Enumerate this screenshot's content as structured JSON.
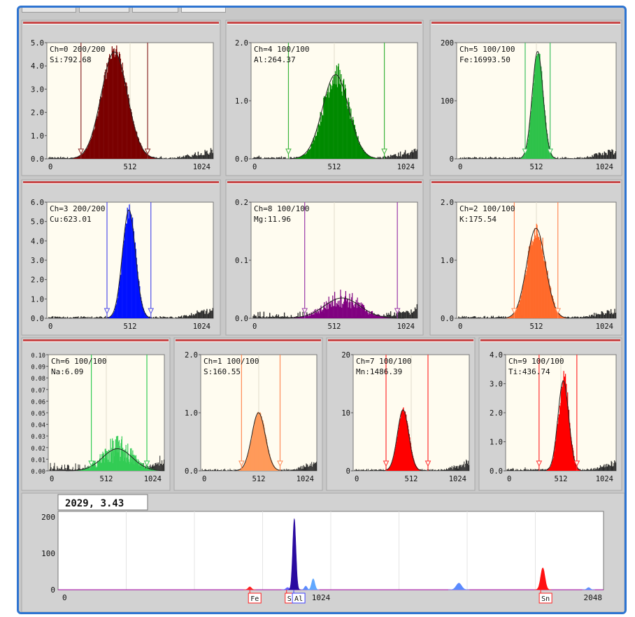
{
  "readout": "2029,  3.43",
  "chart_data": [
    {
      "type": "area",
      "channel": "Ch=0",
      "counts": "200/200",
      "element_label": "Si:792.68",
      "xlim": [
        0,
        1024
      ],
      "ylim": [
        0,
        5.0
      ],
      "x_ticks": [
        "0",
        "512",
        "1024"
      ],
      "y_ticks": [
        "0.0",
        "1.0",
        "2.0",
        "3.0",
        "4.0",
        "5.0"
      ],
      "peak_center": 415,
      "peak_height": 4.6,
      "peak_sigma": 80,
      "roi": [
        210,
        620
      ],
      "fill": "#7a0000",
      "line": "#8b2a2a",
      "noise": 0.1
    },
    {
      "type": "area",
      "channel": "Ch=4",
      "counts": "100/100",
      "element_label": "Al:264.37",
      "xlim": [
        0,
        1024
      ],
      "ylim": [
        0,
        2.0
      ],
      "x_ticks": [
        "0",
        "512",
        "1024"
      ],
      "y_ticks": [
        "0.0",
        "1.0",
        "2.0"
      ],
      "peak_center": 520,
      "peak_height": 1.45,
      "peak_sigma": 80,
      "roi": [
        230,
        820
      ],
      "fill": "#008a00",
      "line": "#3cb43c",
      "noise": 0.2
    },
    {
      "type": "area",
      "channel": "Ch=5",
      "counts": "100/100",
      "element_label": "Fe:16993.50",
      "xlim": [
        0,
        1024
      ],
      "ylim": [
        0,
        200
      ],
      "x_ticks": [
        "0",
        "512",
        "1024"
      ],
      "y_ticks": [
        "0",
        "100",
        "200"
      ],
      "peak_center": 520,
      "peak_height": 185,
      "peak_sigma": 35,
      "roi": [
        440,
        600
      ],
      "fill": "#2ec24a",
      "line": "#40c060",
      "noise": 0.05
    },
    {
      "type": "area",
      "channel": "Ch=3",
      "counts": "200/200",
      "element_label": "Cu:623.01",
      "xlim": [
        0,
        1024
      ],
      "ylim": [
        0,
        6.0
      ],
      "x_ticks": [
        "0",
        "512",
        "1024"
      ],
      "y_ticks": [
        "0.0",
        "1.0",
        "2.0",
        "3.0",
        "4.0",
        "5.0",
        "6.0"
      ],
      "peak_center": 505,
      "peak_height": 5.6,
      "peak_sigma": 40,
      "roi": [
        370,
        640
      ],
      "fill": "#0010ff",
      "line": "#5050e8",
      "noise": 0.1
    },
    {
      "type": "area",
      "channel": "Ch=8",
      "counts": "100/100",
      "element_label": "Mg:11.96",
      "xlim": [
        0,
        1024
      ],
      "ylim": [
        0,
        0.2
      ],
      "x_ticks": [
        "0",
        "512",
        "1024"
      ],
      "y_ticks": [
        "0.0",
        "0.1",
        "0.2"
      ],
      "peak_center": 560,
      "peak_height": 0.035,
      "peak_sigma": 110,
      "roi": [
        330,
        900
      ],
      "fill": "#800080",
      "line": "#9a3aa8",
      "noise": 0.6
    },
    {
      "type": "area",
      "channel": "Ch=2",
      "counts": "100/100",
      "element_label": "K:175.54",
      "xlim": [
        0,
        1024
      ],
      "ylim": [
        0,
        2.0
      ],
      "x_ticks": [
        "0",
        "512",
        "1024"
      ],
      "y_ticks": [
        "0.0",
        "1.0",
        "2.0"
      ],
      "peak_center": 510,
      "peak_height": 1.55,
      "peak_sigma": 60,
      "roi": [
        370,
        650
      ],
      "fill": "#ff6a2a",
      "line": "#ff8a5a",
      "noise": 0.15
    },
    {
      "type": "area",
      "channel": "Ch=6",
      "counts": "100/100",
      "element_label": "Na:6.09",
      "xlim": [
        0,
        1024
      ],
      "ylim": [
        0,
        0.1
      ],
      "x_ticks": [
        "0",
        "512",
        "1024"
      ],
      "y_ticks": [
        "0.00",
        "0.01",
        "0.02",
        "0.03",
        "0.04",
        "0.05",
        "0.06",
        "0.07",
        "0.08",
        "0.09",
        "0.10"
      ],
      "peak_center": 610,
      "peak_height": 0.019,
      "peak_sigma": 130,
      "roi": [
        380,
        870
      ],
      "fill": "#33cc55",
      "line": "#33cc55",
      "noise": 0.8
    },
    {
      "type": "area",
      "channel": "Ch=1",
      "counts": "100/100",
      "element_label": "S:160.55",
      "xlim": [
        0,
        1024
      ],
      "ylim": [
        0,
        2.0
      ],
      "x_ticks": [
        "0",
        "512",
        "1024"
      ],
      "y_ticks": [
        "0.0",
        "1.0",
        "2.0"
      ],
      "peak_center": 510,
      "peak_height": 1.0,
      "peak_sigma": 60,
      "roi": [
        360,
        700
      ],
      "fill": "#ff9a5a",
      "line": "#ff8a55",
      "noise": 0.05
    },
    {
      "type": "area",
      "channel": "Ch=7",
      "counts": "100/100",
      "element_label": "Mn:1486.39",
      "xlim": [
        0,
        1024
      ],
      "ylim": [
        0,
        20
      ],
      "x_ticks": [
        "0",
        "512",
        "1024"
      ],
      "y_ticks": [
        "0",
        "10",
        "20"
      ],
      "peak_center": 440,
      "peak_height": 10.5,
      "peak_sigma": 50,
      "roi": [
        290,
        660
      ],
      "fill": "#ff0000",
      "line": "#ff3030",
      "noise": 0.05
    },
    {
      "type": "area",
      "channel": "Ch=9",
      "counts": "100/100",
      "element_label": "Ti:436.74",
      "xlim": [
        0,
        1024
      ],
      "ylim": [
        0,
        4.0
      ],
      "x_ticks": [
        "0",
        "512",
        "1024"
      ],
      "y_ticks": [
        "0.0",
        "1.0",
        "2.0",
        "3.0",
        "4.0"
      ],
      "peak_center": 535,
      "peak_height": 3.1,
      "peak_sigma": 50,
      "roi": [
        310,
        660
      ],
      "fill": "#ff0000",
      "line": "#ff3030",
      "noise": 0.2
    }
  ],
  "overview": {
    "type": "area",
    "xlim": [
      0,
      2048
    ],
    "ylim": [
      0,
      200
    ],
    "x_ticks": [
      "0",
      "1024",
      "2048"
    ],
    "y_ticks": [
      "0",
      "100",
      "200"
    ],
    "peaks": [
      {
        "x": 720,
        "height": 8,
        "sigma": 6,
        "color": "#ff2020"
      },
      {
        "x": 862,
        "height": 6,
        "sigma": 6,
        "color": "#6060ff"
      },
      {
        "x": 887,
        "height": 195,
        "sigma": 6,
        "color": "#2a0aa0"
      },
      {
        "x": 930,
        "height": 10,
        "sigma": 5,
        "color": "#5a8aff"
      },
      {
        "x": 958,
        "height": 30,
        "sigma": 6,
        "color": "#60a8ff"
      },
      {
        "x": 1505,
        "height": 18,
        "sigma": 10,
        "color": "#5a8aff"
      },
      {
        "x": 1820,
        "height": 60,
        "sigma": 8,
        "color": "#ff1010"
      },
      {
        "x": 1992,
        "height": 6,
        "sigma": 6,
        "color": "#6090ff"
      }
    ],
    "element_markers": [
      {
        "x": 720,
        "label": "Fe",
        "line": "#ff2020"
      },
      {
        "x": 858,
        "label": "Si",
        "line": "#ff2020"
      },
      {
        "x": 885,
        "label": "Al",
        "line": "#4040ff"
      },
      {
        "x": 1812,
        "label": "Sn",
        "line": "#ff2020"
      }
    ]
  }
}
